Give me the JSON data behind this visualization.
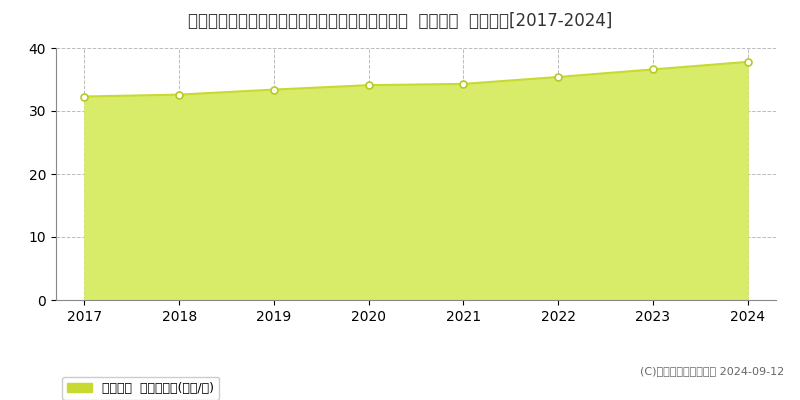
{
  "title": "新潟県新潟市中央区弁天橋通３丁目８５６番１外  地価公示  地価推移[2017-2024]",
  "years": [
    2017,
    2018,
    2019,
    2020,
    2021,
    2022,
    2023,
    2024
  ],
  "values": [
    32.3,
    32.6,
    33.4,
    34.1,
    34.3,
    35.4,
    36.6,
    37.8
  ],
  "ylim": [
    0,
    40
  ],
  "yticks": [
    0,
    10,
    20,
    30,
    40
  ],
  "line_color": "#c8d932",
  "fill_color": "#d8ec6a",
  "fill_alpha": 1.0,
  "marker_color": "#ffffff",
  "marker_edge_color": "#b8c920",
  "bg_color": "#ffffff",
  "grid_color": "#bbbbbb",
  "legend_label": "地価公示  平均坪単価(万円/坪)",
  "legend_marker_color": "#c8d932",
  "copyright_text": "(C)土地価格ドットコム 2024-09-12",
  "title_fontsize": 12,
  "axis_fontsize": 10,
  "legend_fontsize": 9,
  "copyright_fontsize": 8
}
